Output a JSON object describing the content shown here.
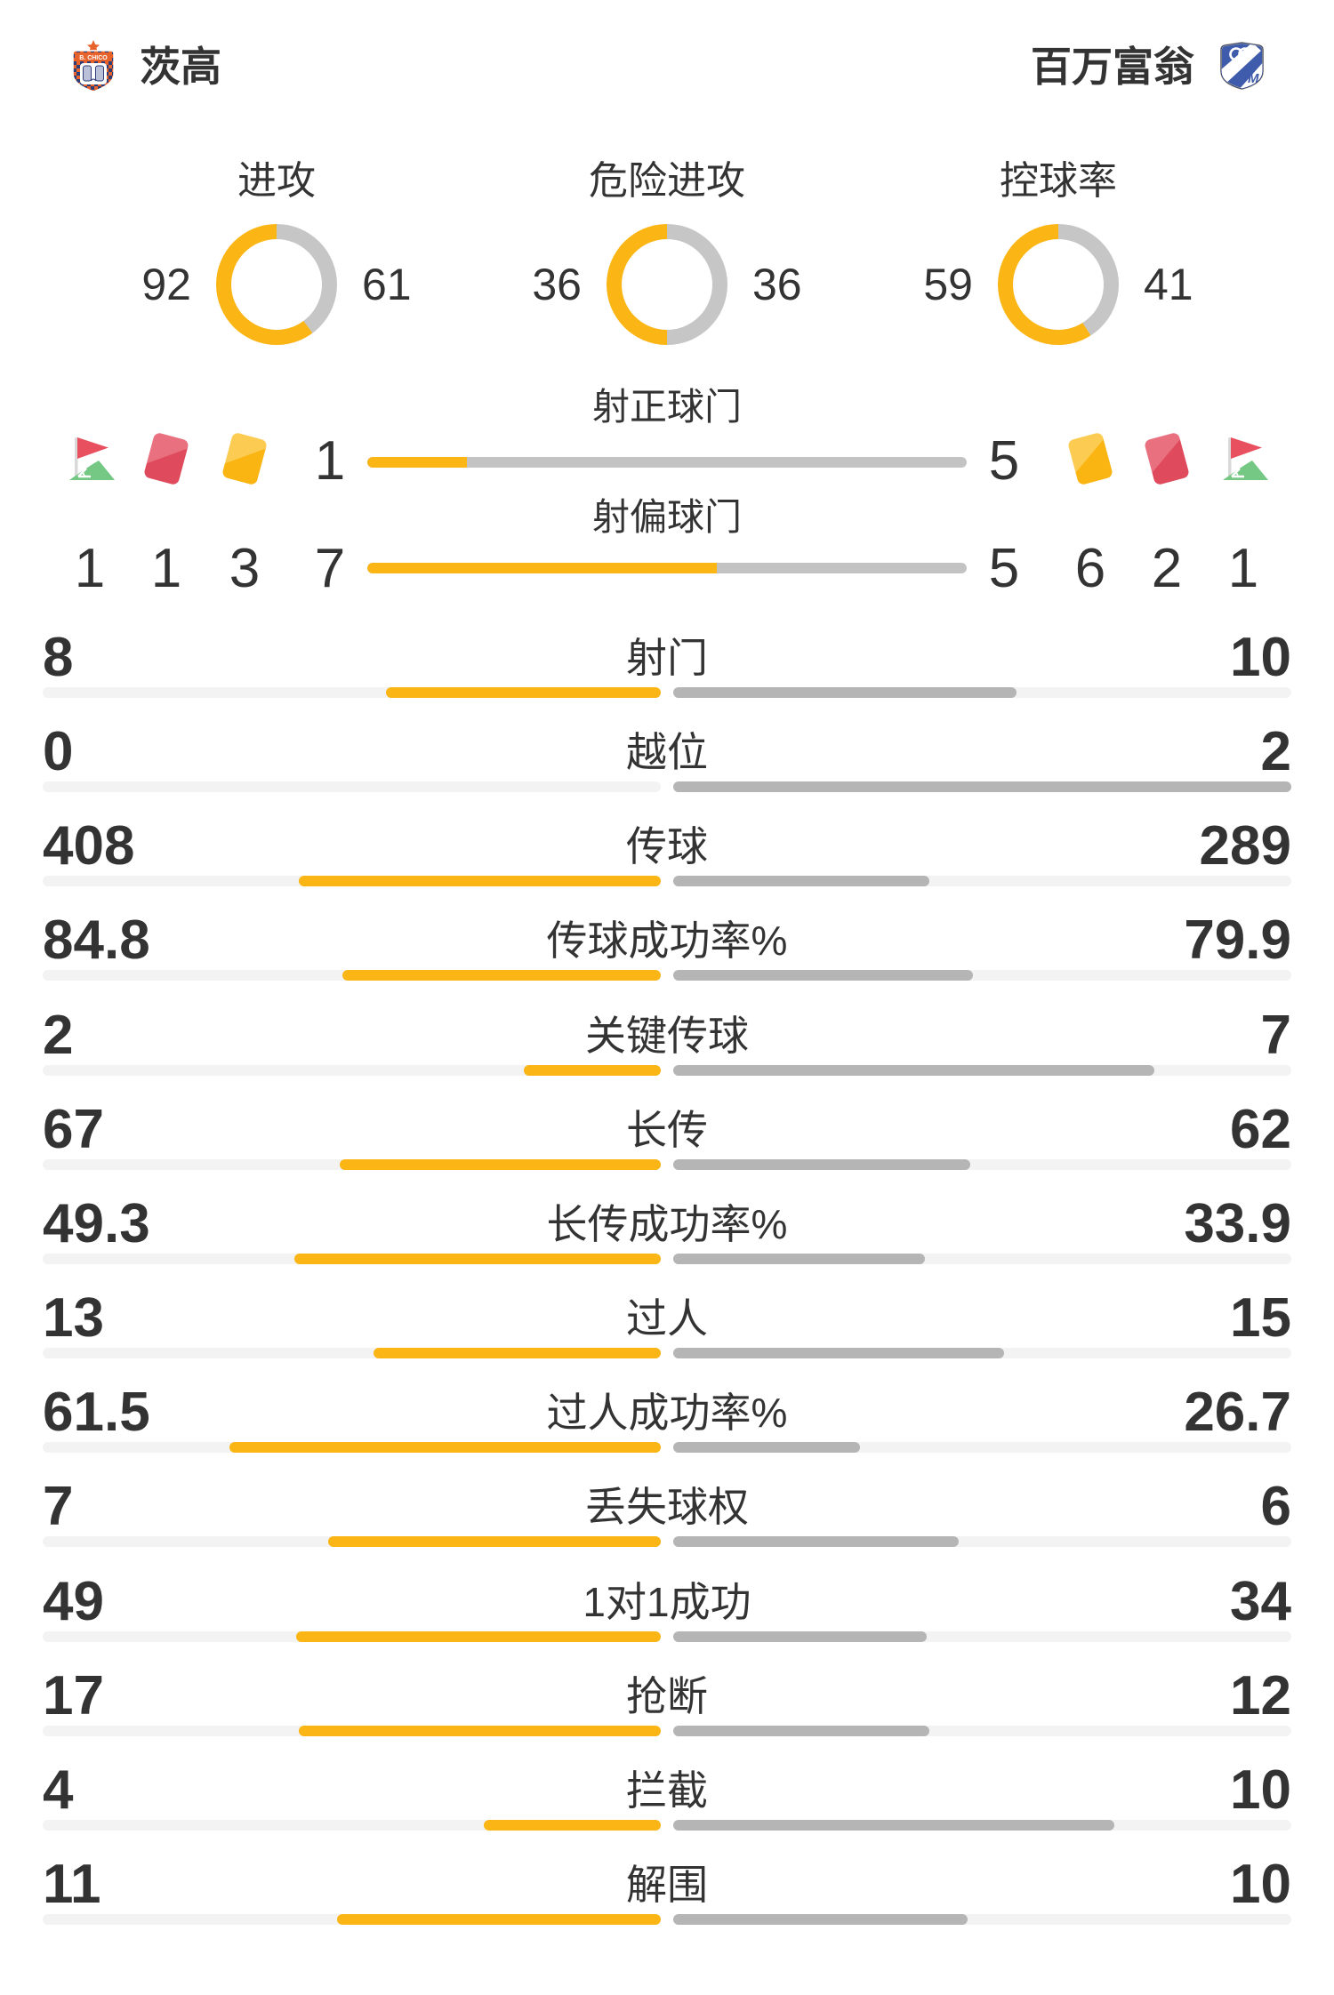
{
  "teams": {
    "home": {
      "name": "茨高",
      "logo": "boyaca-chico-crest",
      "logo_text": "B. CHICO"
    },
    "away": {
      "name": "百万富翁",
      "logo": "millonarios-crest",
      "logo_letter": "M"
    }
  },
  "donuts": [
    {
      "title": "进攻",
      "home": 92,
      "away": 61
    },
    {
      "title": "危险进攻",
      "home": 36,
      "away": 36
    },
    {
      "title": "控球率",
      "home": 59,
      "away": 41
    }
  ],
  "shots": {
    "rows": [
      {
        "label": "射正球门",
        "home": 1,
        "away": 5
      },
      {
        "label": "射偏球门",
        "home": 7,
        "away": 5
      }
    ],
    "home_icons": [
      {
        "icon": "corner-flag",
        "count": 1
      },
      {
        "icon": "red-card",
        "count": 1
      },
      {
        "icon": "yellow-card",
        "count": 3
      }
    ],
    "away_icons": [
      {
        "icon": "yellow-card",
        "count": 6
      },
      {
        "icon": "red-card",
        "count": 2
      },
      {
        "icon": "corner-flag",
        "count": 1
      }
    ]
  },
  "stats": {
    "rows": [
      {
        "label": "射门",
        "home": 8,
        "away": 10
      },
      {
        "label": "越位",
        "home": 0,
        "away": 2
      },
      {
        "label": "传球",
        "home": 408,
        "away": 289
      },
      {
        "label": "传球成功率%",
        "home": 84.8,
        "away": 79.9
      },
      {
        "label": "关键传球",
        "home": 2,
        "away": 7
      },
      {
        "label": "长传",
        "home": 67,
        "away": 62
      },
      {
        "label": "长传成功率%",
        "home": 49.3,
        "away": 33.9
      },
      {
        "label": "过人",
        "home": 13,
        "away": 15
      },
      {
        "label": "过人成功率%",
        "home": 61.5,
        "away": 26.7
      },
      {
        "label": "丢失球权",
        "home": 7,
        "away": 6
      },
      {
        "label": "1对1成功",
        "home": 49,
        "away": 34
      },
      {
        "label": "抢断",
        "home": 17,
        "away": 12
      },
      {
        "label": "拦截",
        "home": 4,
        "away": 10
      },
      {
        "label": "解围",
        "home": 11,
        "away": 10
      }
    ]
  },
  "colors": {
    "home": "#FBB515",
    "away_fill": "#B5B5B5",
    "shot_away": "#C3C3C3",
    "donut_away": "#C6C6C6",
    "track": "#F3F3F3",
    "text": "#333333",
    "card_red": "#DF4A5D",
    "card_yellow": "#FAB513",
    "flag_red": "#E8505F",
    "flag_green": "#74C884"
  }
}
